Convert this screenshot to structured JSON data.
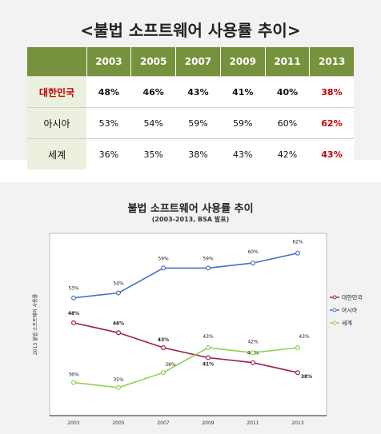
{
  "table": {
    "title": "<불법 소프트웨어 사용률 추이>",
    "header": [
      "",
      "2003",
      "2005",
      "2007",
      "2009",
      "2011",
      "2013"
    ],
    "rows": [
      {
        "label": "대한민국",
        "values": [
          "48%",
          "46%",
          "43%",
          "41%",
          "40%",
          "38%"
        ]
      },
      {
        "label": "아시아",
        "values": [
          "53%",
          "54%",
          "59%",
          "59%",
          "60%",
          "62%"
        ]
      },
      {
        "label": "세계",
        "values": [
          "36%",
          "35%",
          "38%",
          "43%",
          "42%",
          "43%"
        ]
      }
    ]
  },
  "chart_data": {
    "type": "line",
    "title": "불법 소프트웨어 사용률 추이",
    "subtitle": "(2003-2013, BSA 발표)",
    "ylabel": "2013 불법 소프트웨어 사용률",
    "xlabel": "",
    "categories": [
      "2003",
      "2005",
      "2007",
      "2009",
      "2011",
      "2013"
    ],
    "ylim": [
      30,
      65
    ],
    "grid": false,
    "legend_position": "right",
    "series": [
      {
        "name": "대한민국",
        "color": "#9b1f45",
        "values": [
          48,
          46,
          43,
          41,
          40,
          38
        ],
        "labels": [
          "48%",
          "46%",
          "43%",
          "41%",
          "40%",
          "38%"
        ],
        "bold_labels": true
      },
      {
        "name": "아시아",
        "color": "#4472c4",
        "values": [
          53,
          54,
          59,
          59,
          60,
          62
        ],
        "labels": [
          "53%",
          "54%",
          "59%",
          "59%",
          "60%",
          "62%"
        ],
        "bold_labels": false
      },
      {
        "name": "세계",
        "color": "#92d050",
        "values": [
          36,
          35,
          38,
          43,
          42,
          43
        ],
        "labels": [
          "36%",
          "35%",
          "38%",
          "43%",
          "42%",
          "43%"
        ],
        "bold_labels": false
      }
    ]
  }
}
